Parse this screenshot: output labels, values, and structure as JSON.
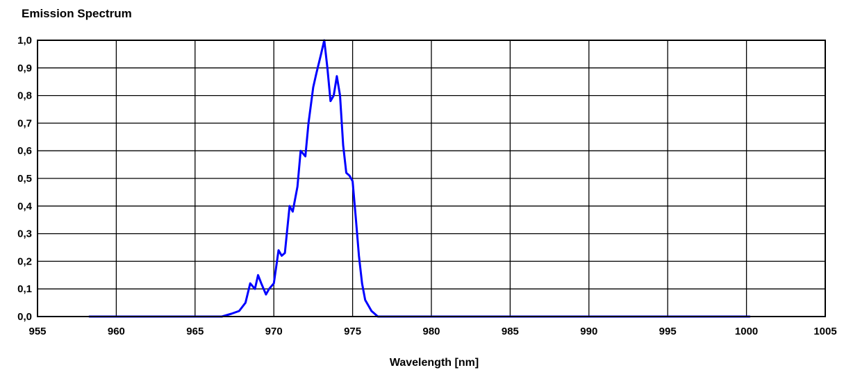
{
  "chart_data": {
    "type": "line",
    "title": "Emission Spectrum",
    "xlabel": "Wavelength [nm]",
    "ylabel": "",
    "xlim": [
      955,
      1005
    ],
    "ylim": [
      0.0,
      1.0
    ],
    "x_ticks": [
      "955",
      "960",
      "965",
      "970",
      "975",
      "980",
      "985",
      "990",
      "995",
      "1000",
      "1005"
    ],
    "y_ticks": [
      "0,0",
      "0,1",
      "0,2",
      "0,3",
      "0,4",
      "0,5",
      "0,6",
      "0,7",
      "0,8",
      "0,9",
      "1,0"
    ],
    "grid": true,
    "series": [
      {
        "color": "#0000ff",
        "x": [
          958.3,
          966.0,
          966.7,
          967.3,
          967.8,
          968.2,
          968.5,
          968.8,
          969.0,
          969.2,
          969.5,
          969.7,
          970.0,
          970.3,
          970.5,
          970.7,
          971.0,
          971.2,
          971.5,
          971.7,
          972.0,
          972.2,
          972.5,
          972.7,
          973.0,
          973.2,
          973.4,
          973.6,
          973.8,
          974.0,
          974.2,
          974.4,
          974.6,
          974.8,
          975.0,
          975.2,
          975.4,
          975.6,
          975.8,
          976.0,
          976.2,
          976.4,
          976.6,
          976.8,
          977.0,
          985.0,
          1000.2
        ],
        "y": [
          0.0,
          0.0,
          0.0,
          0.01,
          0.02,
          0.05,
          0.12,
          0.1,
          0.15,
          0.12,
          0.08,
          0.1,
          0.12,
          0.24,
          0.22,
          0.23,
          0.4,
          0.38,
          0.47,
          0.6,
          0.58,
          0.7,
          0.83,
          0.88,
          0.95,
          1.0,
          0.9,
          0.78,
          0.8,
          0.87,
          0.8,
          0.62,
          0.52,
          0.51,
          0.49,
          0.36,
          0.22,
          0.12,
          0.06,
          0.04,
          0.02,
          0.01,
          0.0,
          0.0,
          0.0,
          0.0,
          0.0
        ]
      }
    ]
  }
}
